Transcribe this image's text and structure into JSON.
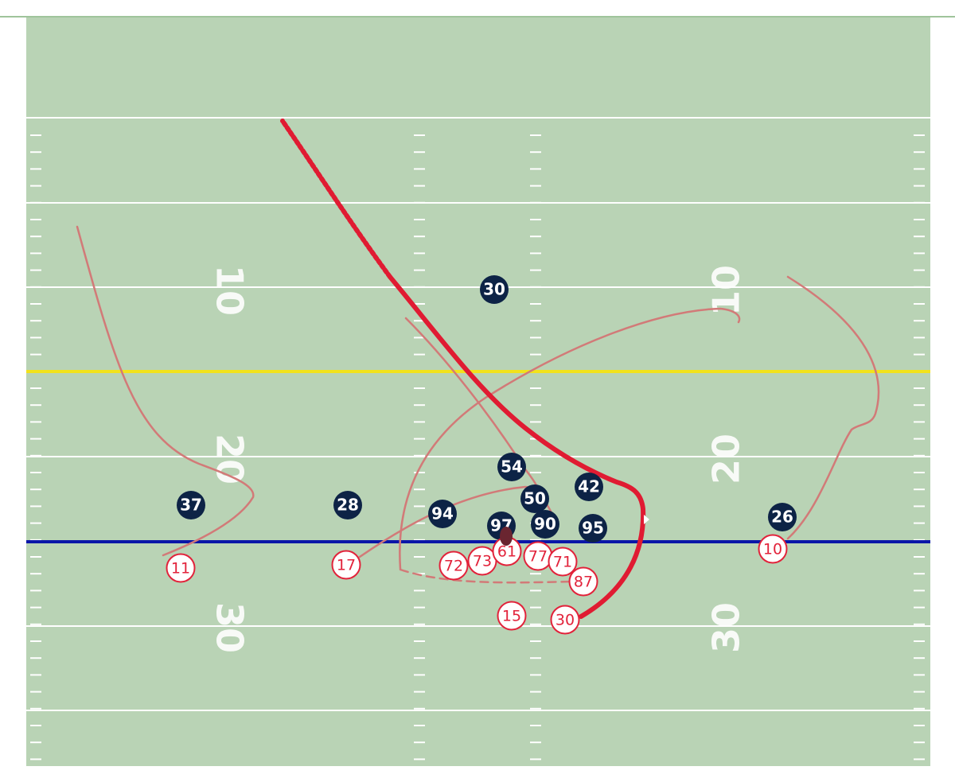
{
  "colors": {
    "field": "#b9d3b5",
    "top_rule": "#9fc49b",
    "yard_line": "#ffffff",
    "first_down_line": "#f2e21c",
    "line_of_scrimmage": "#0a16a8",
    "defense_fill": "#0d2346",
    "offense_stroke": "#e2223a",
    "route": "#d27a78",
    "ball_carrier_path": "#e01b32",
    "ball": "#6a2530"
  },
  "yard_numbers": {
    "left": [
      "10",
      "20",
      "30"
    ],
    "right": [
      "10",
      "20",
      "30"
    ]
  },
  "defense": [
    {
      "number": "30"
    },
    {
      "number": "54"
    },
    {
      "number": "42"
    },
    {
      "number": "50"
    },
    {
      "number": "37"
    },
    {
      "number": "28"
    },
    {
      "number": "94"
    },
    {
      "number": "97"
    },
    {
      "number": "90"
    },
    {
      "number": "95"
    },
    {
      "number": "26"
    }
  ],
  "offense": [
    {
      "number": "11"
    },
    {
      "number": "17"
    },
    {
      "number": "72"
    },
    {
      "number": "73"
    },
    {
      "number": "61"
    },
    {
      "number": "77"
    },
    {
      "number": "71"
    },
    {
      "number": "87"
    },
    {
      "number": "15"
    },
    {
      "number": "30"
    },
    {
      "number": "10"
    }
  ]
}
